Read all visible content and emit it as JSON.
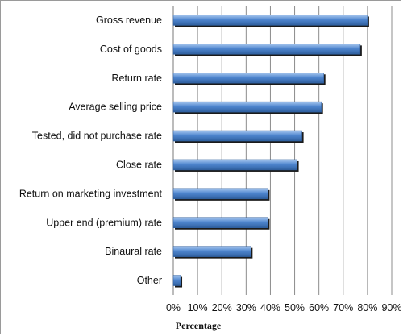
{
  "chart_data": {
    "type": "bar",
    "orientation": "horizontal",
    "categories": [
      "Gross revenue",
      "Cost of goods",
      "Return rate",
      "Average selling price",
      "Tested, did not purchase rate",
      "Close rate",
      "Return on marketing investment",
      "Upper end (premium) rate",
      "Binaural rate",
      "Other"
    ],
    "values": [
      80,
      77,
      62,
      61,
      53,
      51,
      39,
      39,
      32,
      3
    ],
    "title": "",
    "xlabel": "Percentage",
    "ylabel": "",
    "xlim": [
      0,
      90
    ],
    "x_ticks": [
      "0%",
      "10%",
      "20%",
      "30%",
      "40%",
      "50%",
      "60%",
      "70%",
      "80%",
      "90%"
    ],
    "grid": "vertical",
    "legend": "none",
    "colors": {
      "bar_top": "#a9c8ef",
      "bar_mid": "#4f86cf",
      "bar_bottom": "#2f5f9e",
      "bar_shadow": "#1a1a1a",
      "grid": "#8c8c8c"
    }
  }
}
